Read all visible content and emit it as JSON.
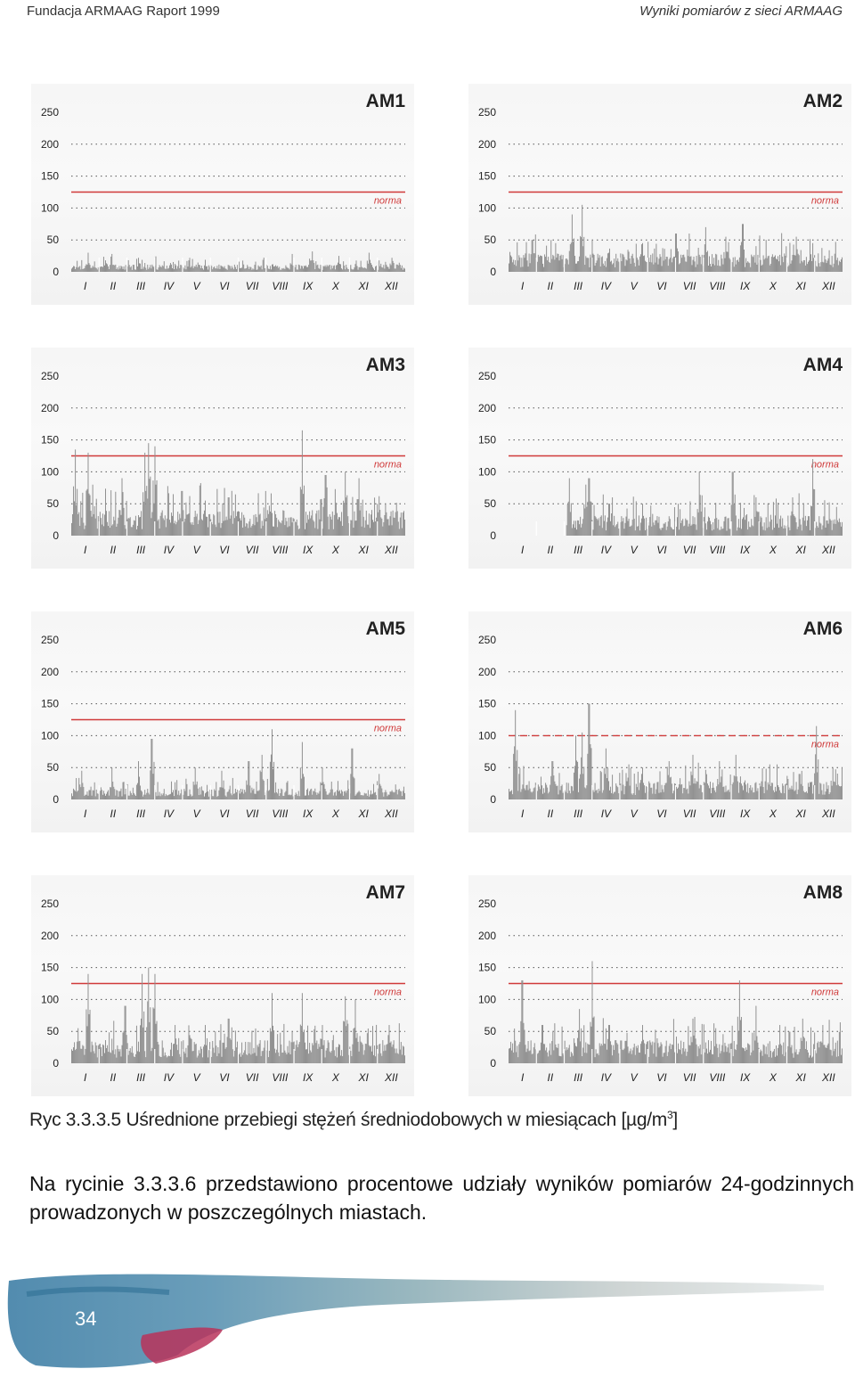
{
  "header": {
    "left": "Fundacja ARMAAG Raport 1999",
    "right": "Wyniki pomiarów z sieci ARMAAG"
  },
  "norm_label": "norma",
  "months": [
    "I",
    "II",
    "III",
    "IV",
    "V",
    "VI",
    "VII",
    "VIII",
    "IX",
    "X",
    "XI",
    "XII"
  ],
  "y_ticks": [
    0,
    50,
    100,
    150,
    200,
    250
  ],
  "colors": {
    "bars": "#8f8f8f",
    "norm": "#d03a3a",
    "grid": "#555555",
    "panel": "#f5f5f5"
  },
  "chart_data": [
    {
      "type": "bar",
      "title": "AM1",
      "ylim": [
        0,
        250
      ],
      "norm": 125,
      "norm_style": "solid",
      "base": 8,
      "peaks": [
        [
          0.05,
          30
        ],
        [
          0.12,
          28
        ],
        [
          0.2,
          22
        ],
        [
          0.35,
          18
        ],
        [
          0.5,
          16
        ],
        [
          0.66,
          28
        ],
        [
          0.72,
          32
        ],
        [
          0.8,
          25
        ],
        [
          0.89,
          30
        ],
        [
          0.96,
          22
        ]
      ]
    },
    {
      "type": "bar",
      "title": "AM2",
      "ylim": [
        0,
        250
      ],
      "norm": 125,
      "norm_style": "solid",
      "base": 20,
      "peaks": [
        [
          0.07,
          50
        ],
        [
          0.14,
          45
        ],
        [
          0.19,
          90
        ],
        [
          0.22,
          105
        ],
        [
          0.25,
          50
        ],
        [
          0.4,
          45
        ],
        [
          0.5,
          60
        ],
        [
          0.54,
          60
        ],
        [
          0.59,
          70
        ],
        [
          0.65,
          55
        ],
        [
          0.7,
          75
        ],
        [
          0.77,
          50
        ],
        [
          0.86,
          55
        ],
        [
          0.91,
          45
        ]
      ]
    },
    {
      "type": "bar",
      "title": "AM3",
      "ylim": [
        0,
        250
      ],
      "norm": 125,
      "norm_style": "solid",
      "base": 28,
      "peaks": [
        [
          0.01,
          135
        ],
        [
          0.05,
          130
        ],
        [
          0.15,
          90
        ],
        [
          0.22,
          130
        ],
        [
          0.23,
          145
        ],
        [
          0.25,
          140
        ],
        [
          0.33,
          70
        ],
        [
          0.4,
          55
        ],
        [
          0.47,
          60
        ],
        [
          0.58,
          70
        ],
        [
          0.69,
          165
        ],
        [
          0.76,
          95
        ],
        [
          0.82,
          100
        ],
        [
          0.86,
          90
        ],
        [
          0.94,
          50
        ]
      ]
    },
    {
      "type": "bar",
      "title": "AM4",
      "ylim": [
        0,
        250
      ],
      "norm": 125,
      "norm_style": "solid",
      "base": 22,
      "start": 0.17,
      "peaks": [
        [
          0.18,
          90
        ],
        [
          0.23,
          80
        ],
        [
          0.24,
          90
        ],
        [
          0.3,
          50
        ],
        [
          0.4,
          50
        ],
        [
          0.57,
          100
        ],
        [
          0.67,
          100
        ],
        [
          0.74,
          60
        ],
        [
          0.85,
          60
        ],
        [
          0.91,
          120
        ],
        [
          0.98,
          45
        ]
      ]
    },
    {
      "type": "bar",
      "title": "AM5",
      "ylim": [
        0,
        250
      ],
      "norm": 125,
      "norm_style": "solid",
      "base": 12,
      "peaks": [
        [
          0.03,
          45
        ],
        [
          0.12,
          50
        ],
        [
          0.2,
          60
        ],
        [
          0.24,
          95
        ],
        [
          0.37,
          50
        ],
        [
          0.45,
          45
        ],
        [
          0.53,
          60
        ],
        [
          0.57,
          70
        ],
        [
          0.6,
          110
        ],
        [
          0.69,
          90
        ],
        [
          0.75,
          50
        ],
        [
          0.84,
          80
        ],
        [
          0.92,
          40
        ]
      ]
    },
    {
      "type": "bar",
      "title": "AM6",
      "ylim": [
        0,
        250
      ],
      "norm": 100,
      "norm_style": "dashed",
      "base": 20,
      "peaks": [
        [
          0.02,
          140
        ],
        [
          0.13,
          60
        ],
        [
          0.2,
          100
        ],
        [
          0.22,
          105
        ],
        [
          0.24,
          150
        ],
        [
          0.29,
          80
        ],
        [
          0.36,
          55
        ],
        [
          0.4,
          50
        ],
        [
          0.48,
          60
        ],
        [
          0.55,
          70
        ],
        [
          0.63,
          60
        ],
        [
          0.68,
          70
        ],
        [
          0.78,
          55
        ],
        [
          0.87,
          40
        ],
        [
          0.92,
          115
        ],
        [
          0.97,
          50
        ]
      ]
    },
    {
      "type": "bar",
      "title": "AM7",
      "ylim": [
        0,
        250
      ],
      "norm": 125,
      "norm_style": "solid",
      "base": 25,
      "peaks": [
        [
          0.02,
          55
        ],
        [
          0.05,
          140
        ],
        [
          0.16,
          90
        ],
        [
          0.21,
          140
        ],
        [
          0.23,
          150
        ],
        [
          0.25,
          140
        ],
        [
          0.31,
          60
        ],
        [
          0.4,
          60
        ],
        [
          0.47,
          70
        ],
        [
          0.6,
          110
        ],
        [
          0.69,
          110
        ],
        [
          0.75,
          60
        ],
        [
          0.82,
          105
        ],
        [
          0.85,
          100
        ],
        [
          0.95,
          60
        ]
      ]
    },
    {
      "type": "bar",
      "title": "AM8",
      "ylim": [
        0,
        250
      ],
      "norm": 125,
      "norm_style": "solid",
      "base": 25,
      "peaks": [
        [
          0.04,
          130
        ],
        [
          0.1,
          60
        ],
        [
          0.21,
          85
        ],
        [
          0.25,
          160
        ],
        [
          0.3,
          60
        ],
        [
          0.4,
          60
        ],
        [
          0.55,
          70
        ],
        [
          0.62,
          55
        ],
        [
          0.69,
          130
        ],
        [
          0.74,
          90
        ],
        [
          0.81,
          60
        ],
        [
          0.88,
          70
        ],
        [
          0.94,
          60
        ]
      ]
    }
  ],
  "caption": {
    "text": "Ryc 3.3.3.5 Uśrednione przebiegi stężeń średniodobowych w miesiącach [µg/m",
    "sup": "3",
    "close": "]"
  },
  "paragraph": "Na rycinie 3.3.3.6 przedstawiono procentowe udziały wyników pomiarów 24-godzinnych prowadzonych w poszczególnych miastach.",
  "page_number": "34"
}
